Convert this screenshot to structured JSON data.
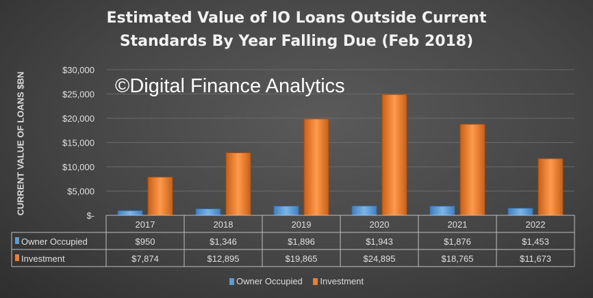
{
  "chart_data": {
    "type": "bar",
    "title": [
      "Estimated Value of IO Loans Outside Current",
      "Standards By Year Falling Due (Feb 2018)"
    ],
    "watermark": "©Digital Finance Analytics",
    "ylabel": "CURRENT VALUE OF LOANS $BN",
    "xlabel": "",
    "ylim": [
      0,
      30000
    ],
    "yticks": [
      0,
      5000,
      10000,
      15000,
      20000,
      25000,
      30000
    ],
    "ytick_labels": [
      "$-",
      "$5,000",
      "$10,000",
      "$15,000",
      "$20,000",
      "$25,000",
      "$30,000"
    ],
    "grid": true,
    "legend": "bottom",
    "categories": [
      "2017",
      "2018",
      "2019",
      "2020",
      "2021",
      "2022"
    ],
    "series": [
      {
        "name": "Owner Occupied",
        "color": "#5b9bd5",
        "values": [
          950,
          1346,
          1896,
          1943,
          1876,
          1453
        ],
        "labels": [
          "$950",
          "$1,346",
          "$1,896",
          "$1,943",
          "$1,876",
          "$1,453"
        ]
      },
      {
        "name": "Investment",
        "color": "#ed7d31",
        "values": [
          7874,
          12895,
          19865,
          24895,
          18765,
          11673
        ],
        "labels": [
          "$7,874",
          "$12,895",
          "$19,865",
          "$24,895",
          "$18,765",
          "$11,673"
        ]
      }
    ],
    "data_table": true
  }
}
